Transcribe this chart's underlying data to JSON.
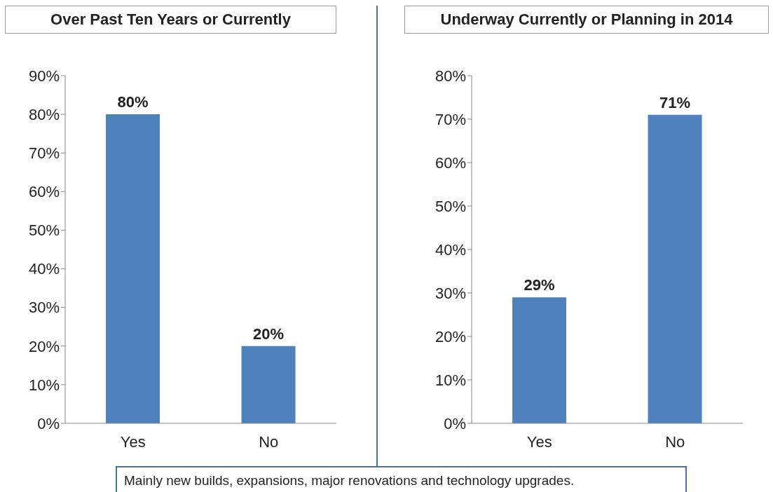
{
  "chart_data": [
    {
      "type": "bar",
      "title": "Over Past Ten Years or Currently",
      "categories": [
        "Yes",
        "No"
      ],
      "values": [
        80,
        20
      ],
      "color": "#4f81bd",
      "value_labels": [
        "80%",
        "20%"
      ],
      "ylim": [
        0,
        90
      ],
      "yticks": [
        {
          "value": 0,
          "label": "0%"
        },
        {
          "value": 10,
          "label": "10%"
        },
        {
          "value": 20,
          "label": "20%"
        },
        {
          "value": 30,
          "label": "30%"
        },
        {
          "value": 40,
          "label": "40%"
        },
        {
          "value": 50,
          "label": "50%"
        },
        {
          "value": 60,
          "label": "60%"
        },
        {
          "value": 70,
          "label": "70%"
        },
        {
          "value": 80,
          "label": "80%"
        },
        {
          "value": 90,
          "label": "90%"
        }
      ],
      "grid": false,
      "legend": false,
      "annotations": [
        "Mainly new builds, expansions, major renovations and technology upgrades."
      ]
    },
    {
      "type": "bar",
      "title": "Underway Currently or Planning in 2014",
      "categories": [
        "Yes",
        "No"
      ],
      "values": [
        29,
        71
      ],
      "color": "#4f81bd",
      "value_labels": [
        "29%",
        "71%"
      ],
      "ylim": [
        0,
        80
      ],
      "yticks": [
        {
          "value": 0,
          "label": "0%"
        },
        {
          "value": 10,
          "label": "10%"
        },
        {
          "value": 20,
          "label": "20%"
        },
        {
          "value": 30,
          "label": "30%"
        },
        {
          "value": 40,
          "label": "40%"
        },
        {
          "value": 50,
          "label": "50%"
        },
        {
          "value": 60,
          "label": "60%"
        },
        {
          "value": 70,
          "label": "70%"
        },
        {
          "value": 80,
          "label": "80%"
        }
      ],
      "grid": false,
      "legend": false
    }
  ]
}
